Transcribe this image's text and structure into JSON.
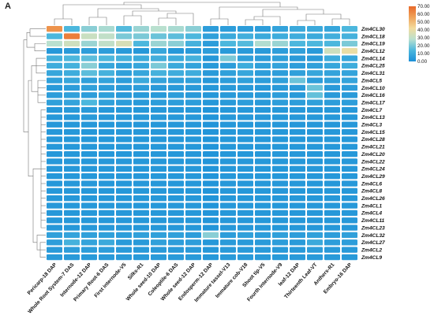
{
  "panel_label": "A",
  "chart_data": {
    "type": "heatmap",
    "columns": [
      "Pericarp-18 DAP",
      "Whole Root System-7 DAS",
      "Internode-12 DAP",
      "Primary Root-6 DAS",
      "First internode-V5",
      "Silks-R1",
      "Whole seed-10 DAP",
      "Coleoptile-6 DAS",
      "Whole seed-12 DAP",
      "Endosperm-12 DAP",
      "Immature tassel-V13",
      "Immature cob-V18",
      "Shoot tip-V5",
      "Fourth internode-V9",
      "leaf-12 DAP",
      "Thirteenth Leaf-VT",
      "Anthers-R1",
      "Embryo-16 DAP"
    ],
    "rows": [
      "Zm4CL30",
      "Zm4CL18",
      "Zm4CL19",
      "Zm4CL12",
      "Zm4CL14",
      "Zm4CL25",
      "Zm4CL31",
      "Zm4CL5",
      "Zm4CL10",
      "Zm4CL16",
      "Zm4CL17",
      "Zm4CL7",
      "Zm4CL13",
      "Zm4CL3",
      "Zm4CL15",
      "Zm4CL28",
      "Zm4CL21",
      "Zm4CL20",
      "Zm4CL22",
      "Zm4CL24",
      "Zm4CL29",
      "Zm4CL6",
      "Zm4CL8",
      "Zm4CL26",
      "Zm4CL1",
      "Zm4CL4",
      "Zm4CL11",
      "Zm4CL23",
      "Zm4CL32",
      "Zm4CL27",
      "Zm4CL2",
      "Zm4CL9"
    ],
    "values": [
      [
        60,
        14,
        22,
        26,
        15,
        24,
        28,
        26,
        22,
        5,
        5,
        5,
        5,
        7,
        9,
        9,
        8,
        14
      ],
      [
        14,
        65,
        32,
        30,
        20,
        20,
        18,
        16,
        14,
        6,
        9,
        11,
        9,
        10,
        10,
        9,
        11,
        12
      ],
      [
        28,
        33,
        24,
        30,
        35,
        14,
        24,
        22,
        12,
        5,
        14,
        15,
        27,
        24,
        14,
        14,
        14,
        20
      ],
      [
        3,
        4,
        5,
        5,
        4,
        3,
        8,
        3,
        4,
        5,
        4,
        4,
        4,
        5,
        6,
        4,
        33,
        40
      ],
      [
        12,
        14,
        16,
        14,
        12,
        10,
        11,
        10,
        12,
        3,
        20,
        6,
        5,
        6,
        4,
        4,
        10,
        8
      ],
      [
        10,
        12,
        22,
        8,
        6,
        8,
        20,
        9,
        7,
        4,
        5,
        10,
        6,
        7,
        5,
        6,
        8,
        10
      ],
      [
        8,
        10,
        16,
        12,
        6,
        8,
        12,
        10,
        10,
        4,
        6,
        8,
        5,
        5,
        6,
        8,
        7,
        7
      ],
      [
        6,
        8,
        6,
        7,
        5,
        9,
        7,
        6,
        6,
        3,
        5,
        6,
        5,
        6,
        18,
        5,
        6,
        7
      ],
      [
        4,
        5,
        6,
        5,
        4,
        5,
        4,
        4,
        4,
        3,
        4,
        4,
        3,
        4,
        4,
        18,
        4,
        5
      ],
      [
        5,
        6,
        5,
        6,
        4,
        4,
        4,
        5,
        4,
        3,
        4,
        4,
        4,
        5,
        4,
        17,
        4,
        4
      ],
      [
        6,
        7,
        14,
        6,
        5,
        4,
        5,
        5,
        5,
        3,
        4,
        5,
        4,
        5,
        5,
        6,
        5,
        5
      ],
      [
        3,
        4,
        4,
        3,
        3,
        3,
        3,
        3,
        3,
        2,
        3,
        3,
        3,
        3,
        3,
        3,
        3,
        3
      ],
      [
        3,
        3,
        4,
        3,
        3,
        3,
        3,
        3,
        3,
        2,
        3,
        3,
        3,
        3,
        3,
        3,
        3,
        3
      ],
      [
        3,
        3,
        3,
        3,
        3,
        3,
        3,
        3,
        3,
        2,
        3,
        3,
        3,
        3,
        3,
        3,
        3,
        3
      ],
      [
        3,
        3,
        3,
        3,
        3,
        3,
        3,
        3,
        3,
        2,
        3,
        3,
        3,
        3,
        3,
        3,
        3,
        3
      ],
      [
        3,
        3,
        3,
        3,
        3,
        3,
        3,
        3,
        3,
        2,
        3,
        3,
        3,
        3,
        3,
        3,
        3,
        3
      ],
      [
        3,
        3,
        3,
        3,
        3,
        3,
        3,
        3,
        3,
        2,
        3,
        3,
        3,
        3,
        3,
        3,
        3,
        3
      ],
      [
        3,
        3,
        3,
        3,
        3,
        3,
        3,
        3,
        3,
        2,
        3,
        3,
        3,
        3,
        3,
        3,
        3,
        3
      ],
      [
        3,
        3,
        3,
        3,
        3,
        3,
        3,
        3,
        3,
        2,
        3,
        3,
        3,
        3,
        3,
        3,
        3,
        3
      ],
      [
        3,
        3,
        3,
        3,
        3,
        3,
        3,
        3,
        3,
        2,
        3,
        3,
        3,
        3,
        3,
        3,
        3,
        3
      ],
      [
        3,
        3,
        3,
        3,
        3,
        3,
        3,
        3,
        3,
        2,
        3,
        3,
        3,
        3,
        3,
        3,
        3,
        3
      ],
      [
        3,
        3,
        3,
        3,
        3,
        3,
        3,
        3,
        3,
        2,
        3,
        3,
        3,
        3,
        3,
        3,
        3,
        3
      ],
      [
        3,
        3,
        3,
        3,
        3,
        3,
        3,
        3,
        3,
        2,
        3,
        3,
        3,
        3,
        3,
        3,
        3,
        3
      ],
      [
        3,
        3,
        3,
        3,
        3,
        3,
        3,
        3,
        3,
        2,
        3,
        3,
        3,
        3,
        3,
        3,
        3,
        3
      ],
      [
        3,
        3,
        3,
        3,
        3,
        3,
        3,
        3,
        3,
        2,
        3,
        3,
        3,
        3,
        3,
        3,
        3,
        3
      ],
      [
        3,
        3,
        3,
        3,
        3,
        3,
        3,
        3,
        3,
        2,
        3,
        3,
        3,
        3,
        3,
        3,
        3,
        3
      ],
      [
        3,
        3,
        3,
        3,
        3,
        3,
        3,
        3,
        3,
        2,
        3,
        3,
        3,
        3,
        3,
        3,
        3,
        3
      ],
      [
        3,
        3,
        3,
        3,
        3,
        3,
        3,
        3,
        3,
        2,
        3,
        3,
        3,
        3,
        3,
        3,
        3,
        3
      ],
      [
        6,
        7,
        6,
        6,
        5,
        6,
        6,
        6,
        5,
        22,
        5,
        6,
        5,
        6,
        5,
        6,
        5,
        6
      ],
      [
        5,
        12,
        7,
        9,
        4,
        4,
        6,
        5,
        5,
        3,
        4,
        4,
        4,
        5,
        4,
        9,
        5,
        5
      ],
      [
        4,
        5,
        5,
        5,
        4,
        4,
        4,
        4,
        4,
        3,
        4,
        4,
        4,
        4,
        4,
        5,
        4,
        4
      ],
      [
        4,
        4,
        4,
        4,
        4,
        4,
        4,
        4,
        4,
        3,
        4,
        4,
        4,
        4,
        4,
        4,
        4,
        4
      ]
    ],
    "colorbar": {
      "ticks": [
        "70.00",
        "60.00",
        "50.00",
        "40.00",
        "30.00",
        "20.00",
        "10.00",
        "0.00"
      ],
      "range": [
        0,
        70
      ],
      "colors": [
        "#1b8fd8",
        "#4cb7dd",
        "#b9e0cf",
        "#f2dc9e",
        "#f0a35a",
        "#e86a2a"
      ]
    },
    "cell_stroke": "#ffffff",
    "dendrogram_color": "#777777"
  }
}
